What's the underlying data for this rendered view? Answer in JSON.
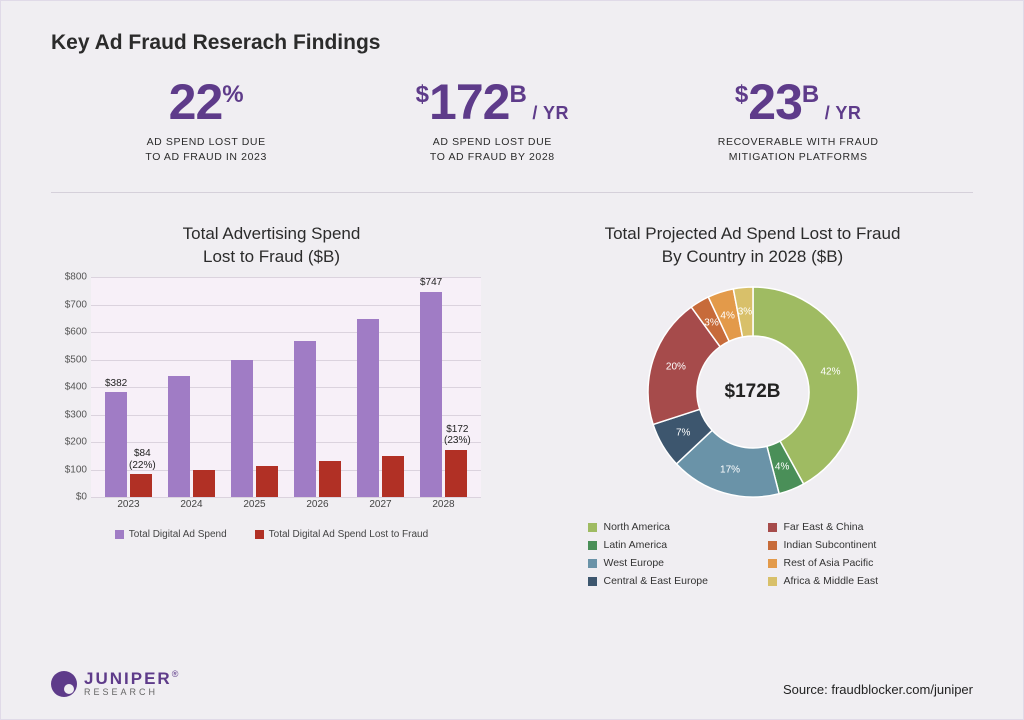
{
  "title": "Key Ad Fraud Reserach Findings",
  "stats": [
    {
      "prefix": "",
      "value": "22",
      "suffix_sup": "%",
      "suffix_yr": "",
      "caption_l1": "AD SPEND LOST DUE",
      "caption_l2": "TO AD FRAUD IN 2023"
    },
    {
      "prefix": "$",
      "value": "172",
      "suffix_sup": "B",
      "suffix_yr": " / YR",
      "caption_l1": "AD SPEND LOST DUE",
      "caption_l2": "TO AD FRAUD BY 2028"
    },
    {
      "prefix": "$",
      "value": "23",
      "suffix_sup": "B",
      "suffix_yr": " / YR",
      "caption_l1": "RECOVERABLE WITH FRAUD",
      "caption_l2": "MITIGATION PLATFORMS"
    }
  ],
  "bar_chart": {
    "title_l1": "Total Advertising Spend",
    "title_l2": "Lost to Fraud ($B)",
    "ymax": 800,
    "ytick_step": 100,
    "bg_color": "#f7f0f8",
    "grid_color": "#dbd3de",
    "series_a": {
      "name": "Total Digital Ad Spend",
      "color": "#a07cc5"
    },
    "series_b": {
      "name": "Total Digital Ad Spend Lost to Fraud",
      "color": "#b13025"
    },
    "points": [
      {
        "year": "2023",
        "a": 382,
        "b": 84,
        "label_a": "$382",
        "label_b_l1": "$84",
        "label_b_l2": "(22%)"
      },
      {
        "year": "2024",
        "a": 440,
        "b": 100,
        "label_a": "",
        "label_b_l1": "",
        "label_b_l2": ""
      },
      {
        "year": "2025",
        "a": 500,
        "b": 115,
        "label_a": "",
        "label_b_l1": "",
        "label_b_l2": ""
      },
      {
        "year": "2026",
        "a": 570,
        "b": 132,
        "label_a": "",
        "label_b_l1": "",
        "label_b_l2": ""
      },
      {
        "year": "2027",
        "a": 650,
        "b": 150,
        "label_a": "",
        "label_b_l1": "",
        "label_b_l2": ""
      },
      {
        "year": "2028",
        "a": 747,
        "b": 172,
        "label_a": "$747",
        "label_b_l1": "$172",
        "label_b_l2": "(23%)"
      }
    ]
  },
  "donut_chart": {
    "title_l1": "Total Projected Ad Spend Lost to Fraud",
    "title_l2": "By Country in 2028 ($B)",
    "center": "$172B",
    "slices": [
      {
        "name": "North America",
        "pct": 42,
        "color": "#9fbb62",
        "label": "42%"
      },
      {
        "name": "Latin America",
        "pct": 4,
        "color": "#4a8f58",
        "label": "4%"
      },
      {
        "name": "West Europe",
        "pct": 17,
        "color": "#6a93a8",
        "label": "17%"
      },
      {
        "name": "Central & East Europe",
        "pct": 7,
        "color": "#3d566e",
        "label": "7%"
      },
      {
        "name": "Far East & China",
        "pct": 20,
        "color": "#a64b4b",
        "label": "20%"
      },
      {
        "name": "Indian Subcontinent",
        "pct": 3,
        "color": "#c76b3a",
        "label": "3%"
      },
      {
        "name": "Rest of Asia Pacific",
        "pct": 4,
        "color": "#e39a4a",
        "label": "4%"
      },
      {
        "name": "Africa & Middle East",
        "pct": 3,
        "color": "#d8c06a",
        "label": "3%"
      }
    ],
    "legend_order": [
      "North America",
      "Far East & China",
      "Latin America",
      "Indian Subcontinent",
      "West Europe",
      "Rest of Asia Pacific",
      "Central & East Europe",
      "Africa & Middle East"
    ]
  },
  "logo": {
    "main": "JUNIPER",
    "sub": "RESEARCH",
    "reg": "®"
  },
  "source": "Source: fraudblocker.com/juniper",
  "colors": {
    "accent": "#5e3b8a",
    "text": "#2b2b2b"
  }
}
